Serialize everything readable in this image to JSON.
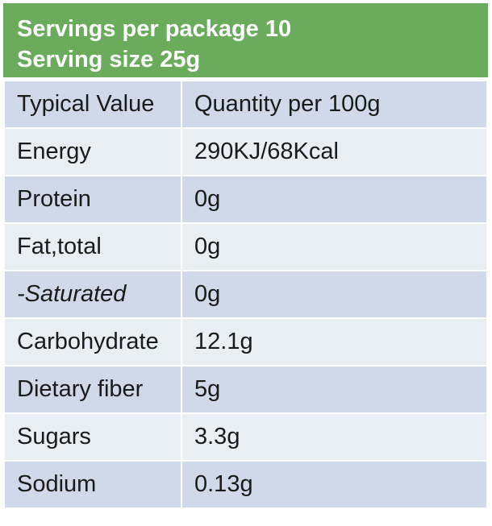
{
  "header": {
    "servings_line": "Servings per package 10",
    "serving_size_line": "Serving size 25g"
  },
  "table": {
    "headers": [
      "Typical Value",
      "Quantity per 100g"
    ],
    "rows": [
      {
        "nutrient": "Energy",
        "quantity": "290KJ/68Kcal"
      },
      {
        "nutrient": "Protein",
        "quantity": "0g"
      },
      {
        "nutrient": "Fat,total",
        "quantity": "0g"
      },
      {
        "nutrient": "-Saturated",
        "quantity": "0g"
      },
      {
        "nutrient": "Carbohydrate",
        "quantity": "12.1g"
      },
      {
        "nutrient": "Dietary fiber",
        "quantity": "5g"
      },
      {
        "nutrient": "Sugars",
        "quantity": "3.3g"
      },
      {
        "nutrient": "Sodium",
        "quantity": "0.13g"
      }
    ]
  },
  "colors": {
    "header_bg": "#6aac5b",
    "row_dark": "#cfd9ea",
    "row_light": "#e9edf4"
  }
}
